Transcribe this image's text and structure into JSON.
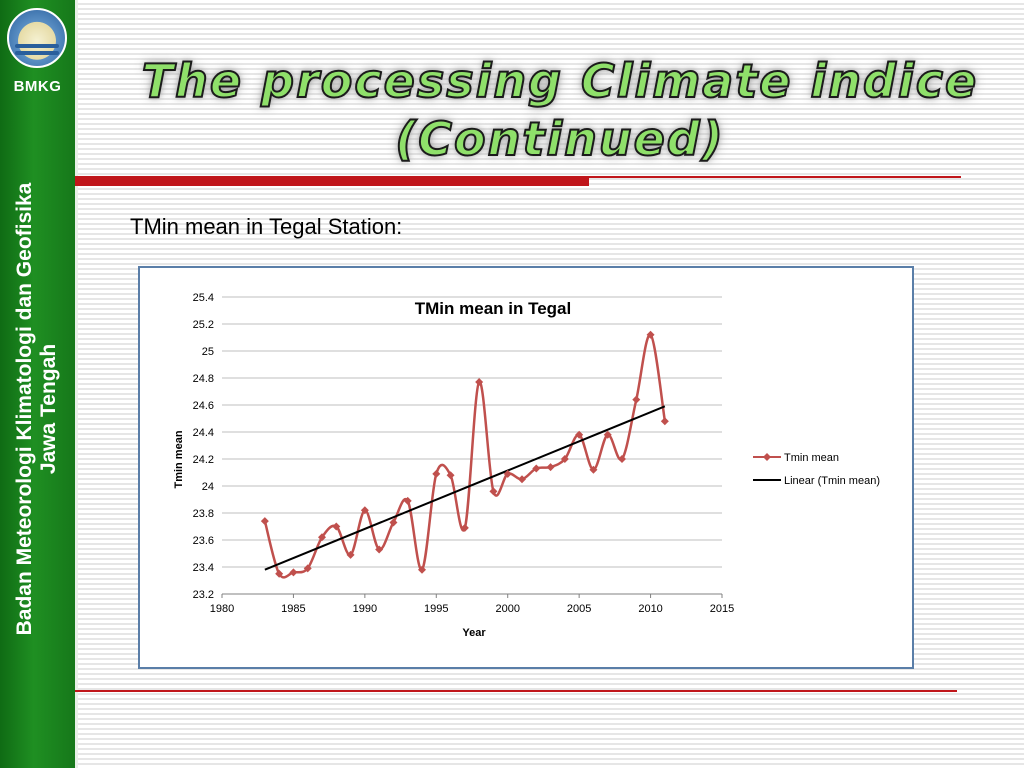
{
  "sidebar": {
    "brand": "BMKG",
    "org_line1": "Badan Meteorologi Klimatologi dan Geofisika",
    "org_line2": "Jawa Tengah"
  },
  "slide": {
    "title_line1": "The processing Climate indice",
    "title_line2": "(Continued)",
    "subtitle": "TMin mean in Tegal Station:"
  },
  "colors": {
    "series": "#c0504d",
    "trend": "#000000",
    "accent_red": "#c0161b",
    "sidebar_green": "#1f8f22",
    "title_green": "#8fe06a"
  },
  "chart_data": {
    "type": "line",
    "title": "TMin mean in Tegal",
    "xlabel": "Year",
    "ylabel": "Tmin mean",
    "xlim": [
      1980,
      2015
    ],
    "ylim": [
      23.2,
      25.4
    ],
    "xticks": [
      1980,
      1985,
      1990,
      1995,
      2000,
      2005,
      2010,
      2015
    ],
    "yticks": [
      23.2,
      23.4,
      23.6,
      23.8,
      24,
      24.2,
      24.4,
      24.6,
      24.8,
      25,
      25.2,
      25.4
    ],
    "grid": "horizontal",
    "legend_position": "right",
    "series": [
      {
        "name": "Tmin mean",
        "marker": "diamond",
        "smooth": true,
        "x": [
          1983,
          1984,
          1985,
          1986,
          1987,
          1988,
          1989,
          1990,
          1991,
          1992,
          1993,
          1994,
          1995,
          1996,
          1997,
          1998,
          1999,
          2000,
          2001,
          2002,
          2003,
          2004,
          2005,
          2006,
          2007,
          2008,
          2009,
          2010,
          2011
        ],
        "y": [
          23.74,
          23.35,
          23.36,
          23.39,
          23.62,
          23.7,
          23.49,
          23.82,
          23.53,
          23.73,
          23.89,
          23.38,
          24.09,
          24.08,
          23.69,
          24.77,
          23.96,
          24.09,
          24.05,
          24.13,
          24.14,
          24.2,
          24.38,
          24.12,
          24.38,
          24.2,
          24.64,
          25.12,
          24.48
        ]
      },
      {
        "name": "Linear (Tmin mean)",
        "type": "trendline",
        "x": [
          1983,
          2011
        ],
        "y": [
          23.38,
          24.59
        ]
      }
    ]
  }
}
